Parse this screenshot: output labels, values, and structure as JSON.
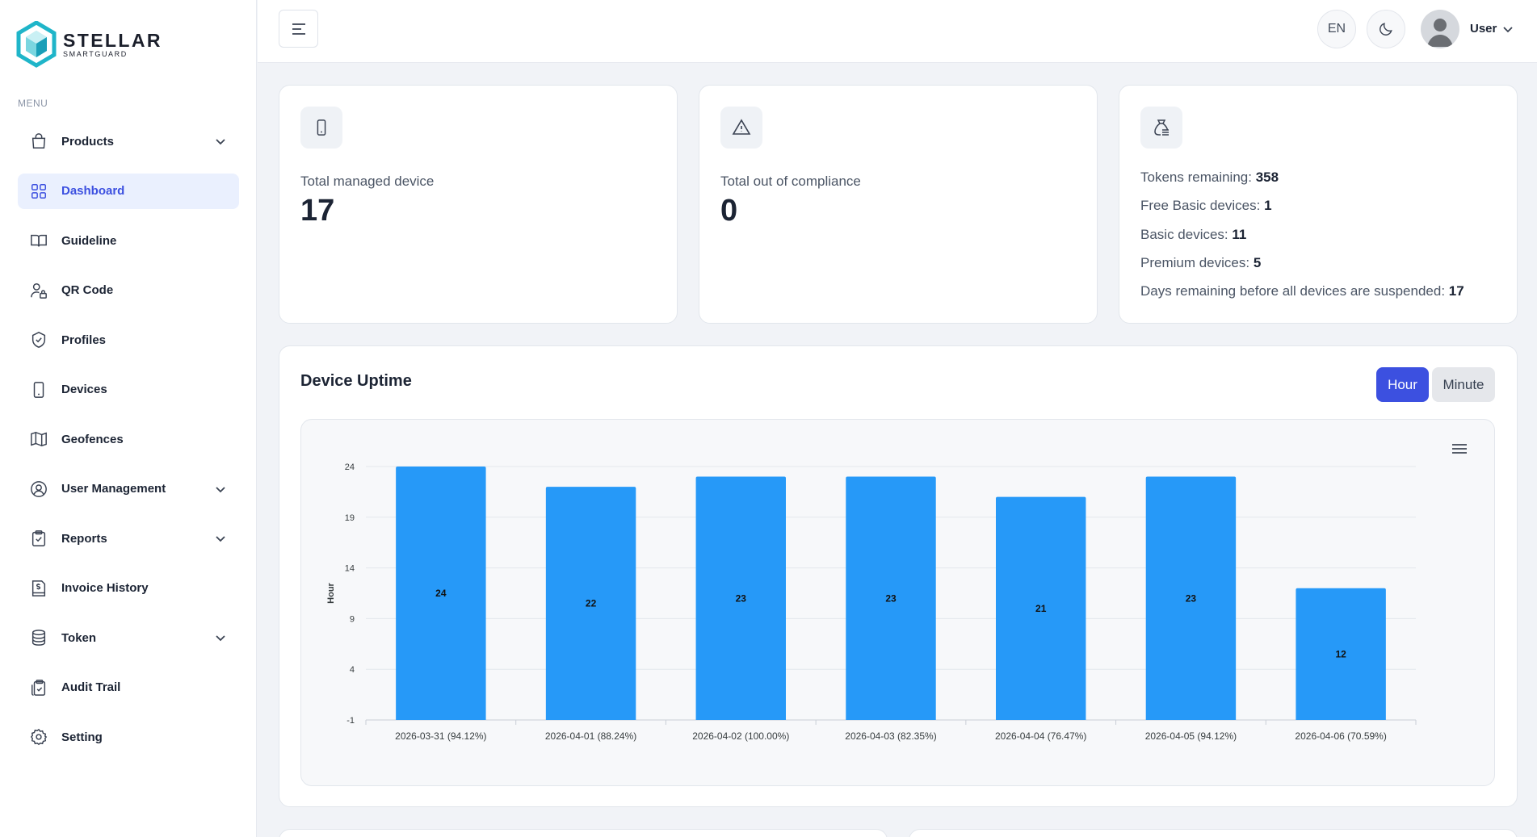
{
  "brand": {
    "title": "STELLAR",
    "subtitle": "SMARTGUARD"
  },
  "sidebar": {
    "menu_heading": "MENU",
    "items": [
      {
        "label": "Products",
        "icon": "bag-icon",
        "has_submenu": true
      },
      {
        "label": "Dashboard",
        "icon": "grid-icon",
        "active": true
      },
      {
        "label": "Guideline",
        "icon": "book-icon"
      },
      {
        "label": "QR Code",
        "icon": "user-lock-icon"
      },
      {
        "label": "Profiles",
        "icon": "shield-check-icon"
      },
      {
        "label": "Devices",
        "icon": "phone-icon"
      },
      {
        "label": "Geofences",
        "icon": "map-icon"
      },
      {
        "label": "User Management",
        "icon": "user-circle-icon",
        "has_submenu": true
      },
      {
        "label": "Reports",
        "icon": "clipboard-check-icon",
        "has_submenu": true
      },
      {
        "label": "Invoice History",
        "icon": "invoice-icon"
      },
      {
        "label": "Token",
        "icon": "database-icon",
        "has_submenu": true
      },
      {
        "label": "Audit Trail",
        "icon": "clipboard-audit-icon"
      },
      {
        "label": "Setting",
        "icon": "gear-icon"
      }
    ]
  },
  "header": {
    "language": "EN",
    "user_name": "User"
  },
  "stats": {
    "managed": {
      "label": "Total managed device",
      "value": "17"
    },
    "compliance": {
      "label": "Total out of compliance",
      "value": "0"
    },
    "tokens": [
      {
        "label": "Tokens remaining:",
        "value": "358"
      },
      {
        "label": "Free Basic devices:",
        "value": "1"
      },
      {
        "label": "Basic devices:",
        "value": "11"
      },
      {
        "label": "Premium devices:",
        "value": "5"
      },
      {
        "label": "Days remaining before all devices are suspended:",
        "value": "17"
      }
    ]
  },
  "uptime": {
    "title": "Device Uptime",
    "toggle": {
      "hour": "Hour",
      "minute": "Minute",
      "selected": "hour"
    }
  },
  "colors": {
    "accent": "#3c50e0",
    "bar": "#2699f8"
  },
  "chart_data": {
    "type": "bar",
    "title": "",
    "xlabel": "",
    "ylabel": "Hour",
    "categories": [
      "2026-03-31 (94.12%)",
      "2026-04-01 (88.24%)",
      "2026-04-02 (100.00%)",
      "2026-04-03 (82.35%)",
      "2026-04-04 (76.47%)",
      "2026-04-05 (94.12%)",
      "2026-04-06 (70.59%)"
    ],
    "values": [
      24,
      22,
      23,
      23,
      21,
      23,
      12
    ],
    "ylim": [
      -1,
      24
    ],
    "yticks": [
      -1,
      4,
      9,
      14,
      19,
      24
    ],
    "grid": true,
    "data_labels": true
  }
}
